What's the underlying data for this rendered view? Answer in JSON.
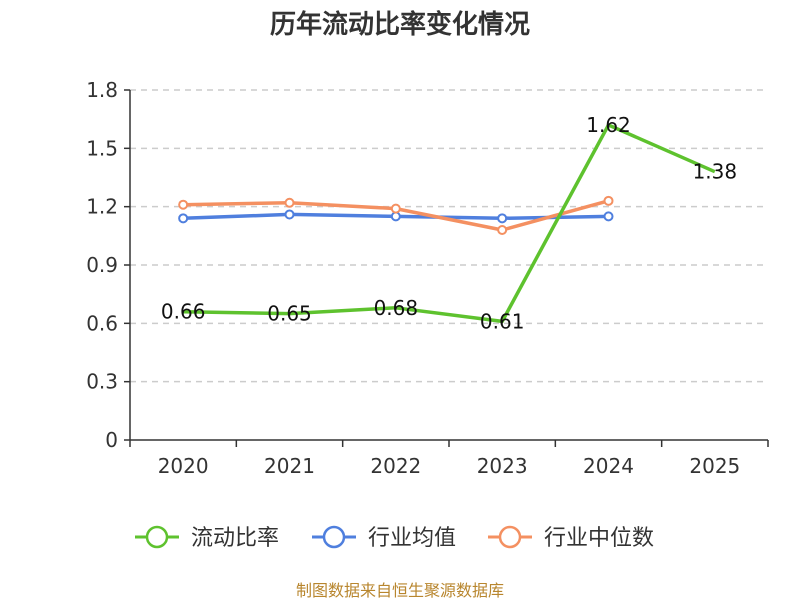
{
  "chart_data": {
    "type": "line",
    "title": "历年流动比率变化情况",
    "categories": [
      "2020",
      "2021",
      "2022",
      "2023",
      "2024",
      "2025"
    ],
    "ylim": [
      0,
      1.8
    ],
    "yticks": [
      "0",
      "0.3",
      "0.6",
      "0.9",
      "1.2",
      "1.5",
      "1.8"
    ],
    "grid": "dashed horizontal",
    "series": [
      {
        "name": "流动比率",
        "color": "#5ec22e",
        "values": [
          0.66,
          0.65,
          0.68,
          0.61,
          1.62,
          1.38
        ],
        "labels": [
          "0.66",
          "0.65",
          "0.68",
          "0.61",
          "1.62",
          "1.38"
        ]
      },
      {
        "name": "行业均值",
        "color": "#4f7fde",
        "values": [
          1.14,
          1.16,
          1.15,
          1.14,
          1.15,
          null
        ]
      },
      {
        "name": "行业中位数",
        "color": "#f49061",
        "values": [
          1.21,
          1.22,
          1.19,
          1.08,
          1.23,
          null
        ]
      }
    ],
    "legend_position": "bottom",
    "source": "制图数据来自恒生聚源数据库"
  }
}
